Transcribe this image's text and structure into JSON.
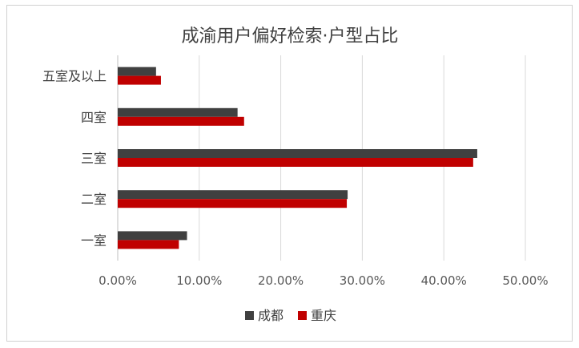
{
  "chart_data": {
    "type": "bar",
    "orientation": "horizontal",
    "title": "成渝用户偏好检索·户型占比",
    "categories": [
      "一室",
      "二室",
      "三室",
      "四室",
      "五室及以上"
    ],
    "series": [
      {
        "name": "成都",
        "color": "#404040",
        "values": [
          8.5,
          28.2,
          44.1,
          14.7,
          4.7
        ]
      },
      {
        "name": "重庆",
        "color": "#c00000",
        "values": [
          7.5,
          28.1,
          43.6,
          15.5,
          5.3
        ]
      }
    ],
    "xlim": [
      0,
      50
    ],
    "xticks": [
      "0.00%",
      "10.00%",
      "20.00%",
      "30.00%",
      "40.00%",
      "50.00%"
    ],
    "xlabel": "",
    "ylabel": "",
    "grid": true,
    "legend_position": "bottom"
  }
}
